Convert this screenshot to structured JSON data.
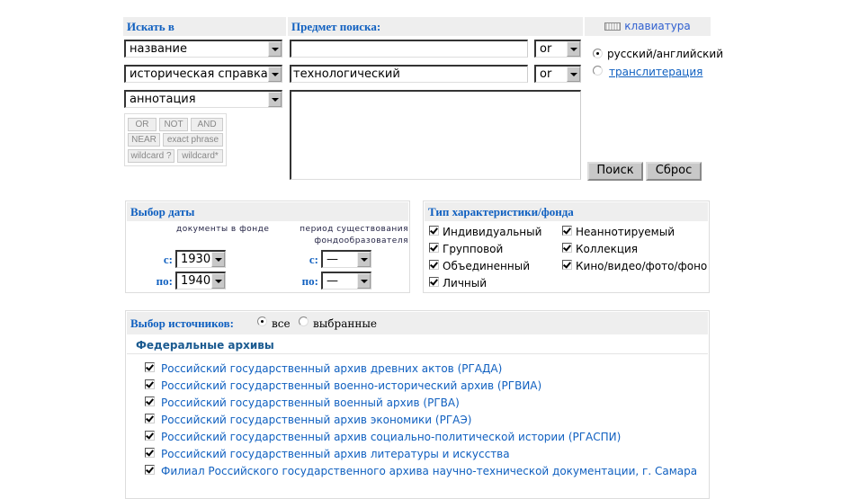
{
  "search": {
    "search_in_header": "Искать в",
    "subject_header": "Предмет поиска:",
    "keyboard_label": "клавиатура",
    "fields": [
      {
        "field": "название",
        "value": "",
        "operator": "or"
      },
      {
        "field": "историческая справка",
        "value": "технологический",
        "operator": "or"
      },
      {
        "field": "аннотация",
        "value": ""
      }
    ],
    "operator_buttons": [
      "OR",
      "NOT",
      "AND",
      "NEAR",
      "exact phrase",
      "wildcard ?",
      "wildcard*"
    ],
    "lang_options": [
      {
        "label": "русский/английский",
        "selected": true
      },
      {
        "label": "транслитерация",
        "selected": false
      }
    ],
    "search_button": "Поиск",
    "reset_button": "Сброс"
  },
  "date": {
    "header": "Выбор даты",
    "col1": "документы в фонде",
    "col2_line1": "период существования",
    "col2_line2": "фондообразователя",
    "from_label": "с:",
    "to_label": "по:",
    "docs_from": "1930",
    "docs_to": "1940",
    "period_from": "—",
    "period_to": "—"
  },
  "type": {
    "header": "Тип характеристики/фонда",
    "left": [
      {
        "label": "Индивидуальный",
        "checked": true
      },
      {
        "label": "Групповой",
        "checked": true
      },
      {
        "label": "Объединенный",
        "checked": true
      },
      {
        "label": "Личный",
        "checked": true
      }
    ],
    "right": [
      {
        "label": "Неаннотируемый",
        "checked": true
      },
      {
        "label": "Коллекция",
        "checked": true
      },
      {
        "label": "Кино/видео/фото/фоно",
        "checked": true
      }
    ]
  },
  "sources": {
    "header": "Выбор источников:",
    "all_label": "все",
    "selected_label": "выбранные",
    "all_selected": true,
    "group_title": "Федеральные архивы",
    "archives": [
      "Российский государственный архив древних актов (РГАДА)",
      "Российский государственный военно-исторический архив (РГВИА)",
      "Российский государственный военный архив (РГВА)",
      "Российский государственный архив экономики (РГАЭ)",
      "Российский государственный архив социально-политической истории (РГАСПИ)",
      "Российский государственный архив литературы и искусства",
      "Филиал Российского государственного архива научно-технической документации, г. Самара"
    ]
  },
  "colors": {
    "accent": "#1060c0",
    "header_bg": "#eeeeee"
  }
}
